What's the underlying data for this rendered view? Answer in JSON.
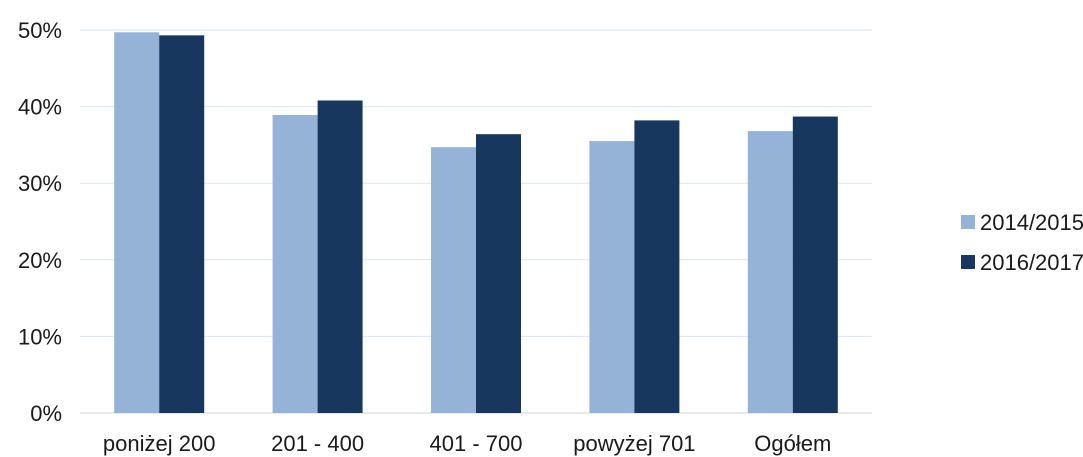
{
  "chart_data": {
    "type": "bar",
    "title": "",
    "xlabel": "",
    "ylabel": "",
    "categories": [
      "poniżej 200",
      "201 - 400",
      "401 - 700",
      "powyżej 701",
      "Ogółem"
    ],
    "series": [
      {
        "name": "2014/2015",
        "color": "#95B3D7",
        "values": [
          49.7,
          38.9,
          34.7,
          35.5,
          36.8
        ]
      },
      {
        "name": "2016/2017",
        "color": "#17375E",
        "values": [
          49.3,
          40.8,
          36.4,
          38.2,
          38.7
        ]
      }
    ],
    "ylim": [
      0,
      50
    ],
    "yticks": [
      "0%",
      "10%",
      "20%",
      "30%",
      "40%",
      "50%"
    ],
    "grid": true,
    "legend_position": "right"
  }
}
